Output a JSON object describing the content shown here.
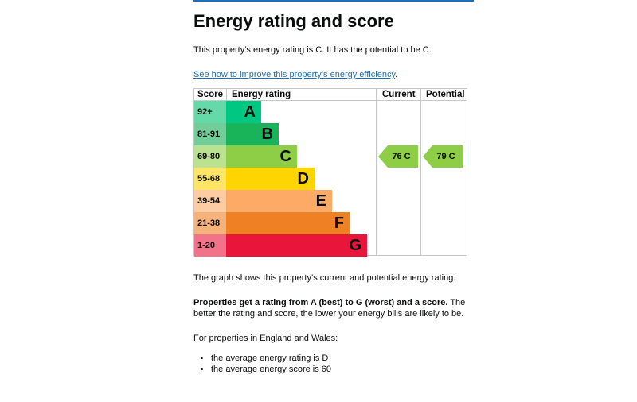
{
  "page": {
    "heading": "Energy rating and score",
    "summary": "This property’s energy rating is C. It has the potential to be C.",
    "improve_link": "See how to improve this property’s energy efficiency",
    "improve_link_suffix": "."
  },
  "chart": {
    "headers": {
      "score": "Score",
      "energy_rating": "Energy rating",
      "current": "Current",
      "potential": "Potential"
    },
    "bands": [
      {
        "range": "92+",
        "letter": "A",
        "color": "#00c781",
        "score_bg": "#66d9a8",
        "width_fraction": 0.25
      },
      {
        "range": "81-91",
        "letter": "B",
        "color": "#19b459",
        "score_bg": "#73cd98",
        "width_fraction": 0.375
      },
      {
        "range": "69-80",
        "letter": "C",
        "color": "#8dce46",
        "score_bg": "#bbe290",
        "width_fraction": 0.5
      },
      {
        "range": "55-68",
        "letter": "D",
        "color": "#ffd500",
        "score_bg": "#ffe566",
        "width_fraction": 0.625
      },
      {
        "range": "39-54",
        "letter": "E",
        "color": "#fcaa65",
        "score_bg": "#fdcca3",
        "width_fraction": 0.75
      },
      {
        "range": "21-38",
        "letter": "F",
        "color": "#ef8023",
        "score_bg": "#f5b37b",
        "width_fraction": 0.875
      },
      {
        "range": "1-20",
        "letter": "G",
        "color": "#e9153b",
        "score_bg": "#f27389",
        "width_fraction": 1.0
      }
    ],
    "current": {
      "label": "76  C",
      "score": 76,
      "band_index": 2,
      "color": "#8dce46"
    },
    "potential": {
      "label": "79  C",
      "score": 79,
      "band_index": 2,
      "color": "#8dce46"
    }
  },
  "text": {
    "graph_caption": "The graph shows this property’s current and potential energy rating.",
    "ratings_bold": "Properties get a rating from A (best) to G (worst) and a score.",
    "ratings_rest": " The better the rating and score, the lower your energy bills are likely to be.",
    "england_wales": "For properties in England and Wales:",
    "bullets": [
      "the average energy rating is D",
      "the average energy score is 60"
    ]
  }
}
